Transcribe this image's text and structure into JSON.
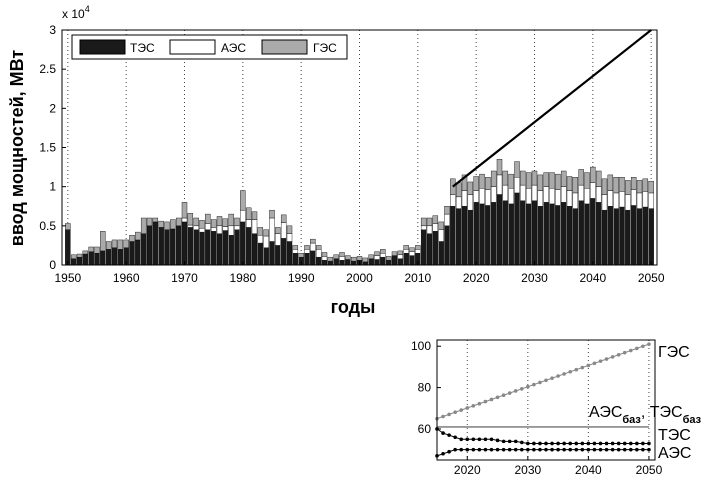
{
  "chart_data": [
    {
      "type": "bar",
      "stacked": true,
      "xlabel": "годы",
      "ylabel": "ввод мощностей, МВт",
      "y_multiplier": "x 10",
      "y_multiplier_exp": "4",
      "xlim": [
        1949,
        2051
      ],
      "ylim": [
        0,
        3
      ],
      "x_ticks": [
        "1950",
        "1960",
        "1970",
        "1980",
        "1990",
        "2000",
        "2010",
        "2020",
        "2030",
        "2040",
        "2050"
      ],
      "y_ticks": [
        "0",
        "0.5",
        "1",
        "1.5",
        "2",
        "2.5",
        "3"
      ],
      "grid": "vertical dotted",
      "legend_position": "top-left",
      "colors": {
        "ТЭС": "#1a1a1a",
        "АЭС": "#ffffff",
        "ГЭС": "#aaaaaa"
      },
      "x": [
        1950,
        1951,
        1952,
        1953,
        1954,
        1955,
        1956,
        1957,
        1958,
        1959,
        1960,
        1961,
        1962,
        1963,
        1964,
        1965,
        1966,
        1967,
        1968,
        1969,
        1970,
        1971,
        1972,
        1973,
        1974,
        1975,
        1976,
        1977,
        1978,
        1979,
        1980,
        1981,
        1982,
        1983,
        1984,
        1985,
        1986,
        1987,
        1988,
        1989,
        1990,
        1991,
        1992,
        1993,
        1994,
        1995,
        1996,
        1997,
        1998,
        1999,
        2000,
        2001,
        2002,
        2003,
        2004,
        2005,
        2006,
        2007,
        2008,
        2009,
        2010,
        2011,
        2012,
        2013,
        2014,
        2015,
        2016,
        2017,
        2018,
        2019,
        2020,
        2021,
        2022,
        2023,
        2024,
        2025,
        2026,
        2027,
        2028,
        2029,
        2030,
        2031,
        2032,
        2033,
        2034,
        2035,
        2036,
        2037,
        2038,
        2039,
        2040,
        2041,
        2042,
        2043,
        2044,
        2045,
        2046,
        2047,
        2048,
        2049,
        2050
      ],
      "series": [
        {
          "name": "ТЭС",
          "values": [
            0.45,
            0.08,
            0.1,
            0.14,
            0.17,
            0.15,
            0.18,
            0.2,
            0.22,
            0.2,
            0.22,
            0.3,
            0.32,
            0.4,
            0.5,
            0.55,
            0.48,
            0.45,
            0.46,
            0.5,
            0.55,
            0.48,
            0.45,
            0.42,
            0.45,
            0.43,
            0.4,
            0.44,
            0.38,
            0.45,
            0.55,
            0.48,
            0.4,
            0.28,
            0.22,
            0.3,
            0.25,
            0.34,
            0.3,
            0.15,
            0.1,
            0.15,
            0.18,
            0.1,
            0.06,
            0.05,
            0.08,
            0.06,
            0.07,
            0.05,
            0.06,
            0.04,
            0.08,
            0.07,
            0.1,
            0.06,
            0.12,
            0.08,
            0.15,
            0.12,
            0.15,
            0.45,
            0.4,
            0.43,
            0.3,
            0.5,
            0.75,
            0.72,
            0.75,
            0.7,
            0.8,
            0.78,
            0.76,
            0.8,
            0.9,
            0.82,
            0.78,
            0.92,
            0.82,
            0.78,
            0.82,
            0.75,
            0.8,
            0.78,
            0.76,
            0.8,
            0.75,
            0.72,
            0.82,
            0.78,
            0.85,
            0.8,
            0.7,
            0.75,
            0.72,
            0.74,
            0.7,
            0.76,
            0.72,
            0.74,
            0.72
          ]
        },
        {
          "name": "АЭС",
          "values": [
            0,
            0,
            0,
            0,
            0,
            0,
            0,
            0,
            0,
            0,
            0,
            0,
            0,
            0,
            0,
            0,
            0,
            0,
            0,
            0,
            0.05,
            0.03,
            0.05,
            0.05,
            0.08,
            0.05,
            0.1,
            0.05,
            0.12,
            0.05,
            0.15,
            0.1,
            0.18,
            0.1,
            0.15,
            0.3,
            0.15,
            0.2,
            0.1,
            0.05,
            0,
            0.05,
            0.1,
            0.1,
            0.05,
            0,
            0,
            0.05,
            0,
            0,
            0,
            0,
            0,
            0.05,
            0.05,
            0,
            0,
            0.05,
            0.05,
            0.05,
            0.05,
            0.05,
            0.1,
            0.1,
            0.15,
            0.15,
            0.15,
            0.15,
            0.2,
            0.2,
            0.15,
            0.2,
            0.2,
            0.2,
            0.25,
            0.2,
            0.2,
            0.2,
            0.2,
            0.2,
            0.2,
            0.2,
            0.2,
            0.2,
            0.2,
            0.2,
            0.2,
            0.2,
            0.2,
            0.2,
            0.2,
            0.2,
            0.2,
            0.2,
            0.2,
            0.2,
            0.2,
            0.2,
            0.2,
            0.2,
            0.2
          ]
        },
        {
          "name": "ГЭС",
          "values": [
            0.08,
            0.05,
            0.04,
            0.04,
            0.06,
            0.08,
            0.25,
            0.1,
            0.1,
            0.12,
            0.1,
            0.08,
            0.1,
            0.2,
            0.1,
            0.05,
            0.08,
            0.1,
            0.12,
            0.1,
            0.2,
            0.15,
            0.1,
            0.1,
            0.12,
            0.1,
            0.12,
            0.1,
            0.15,
            0.1,
            0.25,
            0.15,
            0.1,
            0.1,
            0.08,
            0.1,
            0.08,
            0.1,
            0.1,
            0.05,
            0.05,
            0.05,
            0.05,
            0.05,
            0.05,
            0.05,
            0.05,
            0.05,
            0.05,
            0.05,
            0.05,
            0.05,
            0.05,
            0.05,
            0.05,
            0.05,
            0.05,
            0.05,
            0.05,
            0.05,
            0.05,
            0.1,
            0.1,
            0.1,
            0.1,
            0.1,
            0.2,
            0.18,
            0.2,
            0.16,
            0.18,
            0.18,
            0.16,
            0.2,
            0.2,
            0.18,
            0.18,
            0.2,
            0.18,
            0.2,
            0.18,
            0.2,
            0.18,
            0.2,
            0.2,
            0.2,
            0.18,
            0.2,
            0.2,
            0.2,
            0.2,
            0.2,
            0.2,
            0.2,
            0.2,
            0.18,
            0.18,
            0.16,
            0.16,
            0.16,
            0.15
          ]
        }
      ],
      "overlay_line": {
        "x": [
          2016,
          2050
        ],
        "y": [
          1.0,
          3.0
        ]
      }
    },
    {
      "type": "line",
      "xlim": [
        2015,
        2051
      ],
      "ylim": [
        45,
        103
      ],
      "x_ticks": [
        "2020",
        "2030",
        "2040",
        "2050"
      ],
      "y_ticks": [
        "40",
        "60",
        "80",
        "100"
      ],
      "grid": "vertical dotted",
      "series": [
        {
          "name": "ГЭС",
          "style": "grey dotted markers",
          "x": [
            2015,
            2050
          ],
          "y": [
            65,
            101
          ]
        },
        {
          "name": "АЭС",
          "name_sub": "баз",
          "name_2": "ТЭС",
          "name_2_sub": "баз",
          "style": "grey solid",
          "x": [
            2015,
            2050
          ],
          "y": [
            61,
            61
          ]
        },
        {
          "name": "ТЭС",
          "style": "black dotted markers",
          "x": [
            2015,
            2016,
            2017,
            2018,
            2019,
            2020,
            2022,
            2024,
            2026,
            2028,
            2030,
            2035,
            2040,
            2045,
            2050
          ],
          "y": [
            60,
            58,
            57,
            56,
            55,
            55,
            55,
            55,
            54,
            54,
            53,
            53,
            53,
            53,
            53
          ]
        },
        {
          "name": "АЭС",
          "style": "black dotted markers",
          "x": [
            2015,
            2016,
            2017,
            2018,
            2019,
            2020,
            2025,
            2030,
            2035,
            2040,
            2045,
            2050
          ],
          "y": [
            47,
            48,
            49,
            50,
            50,
            50,
            50,
            50,
            50,
            50,
            50,
            50
          ]
        }
      ]
    }
  ]
}
